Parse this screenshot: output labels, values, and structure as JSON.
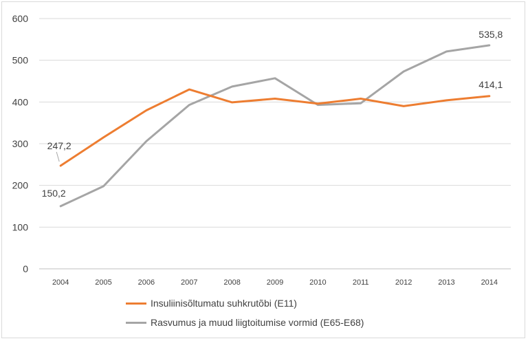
{
  "chart_data": {
    "type": "line",
    "categories": [
      "2004",
      "2005",
      "2006",
      "2007",
      "2008",
      "2009",
      "2010",
      "2011",
      "2012",
      "2013",
      "2014"
    ],
    "yticks": [
      "0",
      "100",
      "200",
      "300",
      "400",
      "500",
      "600"
    ],
    "ylim": [
      0,
      600
    ],
    "grid": true,
    "legend_position": "bottom",
    "series": [
      {
        "name": "Insuliinisõltumatu suhkrutõbi (E11)",
        "color": "#ed7d31",
        "values": [
          247.2,
          315,
          380,
          430,
          399,
          408,
          396,
          408,
          390,
          404,
          414.1
        ],
        "first_label": "247,2",
        "last_label": "414,1"
      },
      {
        "name": "Rasvumus ja muud liigtoitumise vormid (E65-E68)",
        "color": "#a5a5a5",
        "values": [
          150.2,
          198,
          306,
          393,
          437,
          457,
          393,
          397,
          473,
          521,
          535.8
        ],
        "first_label": "150,2",
        "last_label": "535,8"
      }
    ]
  }
}
